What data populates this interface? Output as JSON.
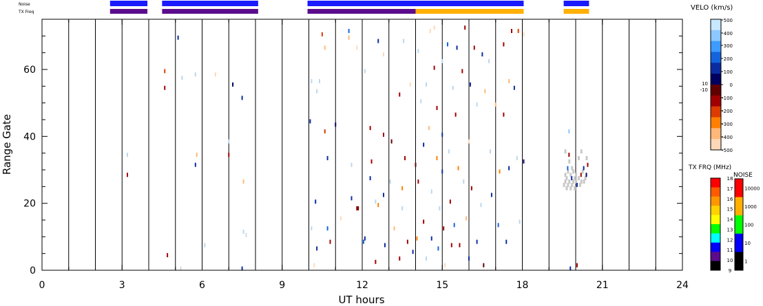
{
  "chart_data": {
    "type": "heatmap",
    "xlabel": "UT hours",
    "ylabel": "Range Gate",
    "xlim": [
      0,
      24
    ],
    "ylim": [
      0,
      75
    ],
    "x_ticks": [
      0,
      3,
      6,
      9,
      12,
      15,
      18,
      21,
      24
    ],
    "x_tick_labels": [
      "0",
      "3",
      "6",
      "9",
      "12",
      "15",
      "18",
      "21",
      "24"
    ],
    "y_ticks": [
      0,
      20,
      40,
      60
    ],
    "y_tick_labels": [
      "0",
      "20",
      "40",
      "60"
    ],
    "grid": "vertical lines every hour",
    "status_rows": {
      "noise_label": "Noise",
      "txfreq_label": "TX Freq",
      "noise_segments": [
        {
          "start": 2.55,
          "end": 3.95,
          "color": "#1a1aff"
        },
        {
          "start": 4.5,
          "end": 8.1,
          "color": "#1a1aff"
        },
        {
          "start": 9.95,
          "end": 18.05,
          "color": "#1a1aff"
        },
        {
          "start": 19.55,
          "end": 20.5,
          "color": "#1a1aff"
        }
      ],
      "txfreq_segments": [
        {
          "start": 2.55,
          "end": 3.95,
          "color": "#5b0c8c"
        },
        {
          "start": 4.5,
          "end": 8.1,
          "color": "#5b0c8c"
        },
        {
          "start": 9.95,
          "end": 14.0,
          "color": "#5b0c8c"
        },
        {
          "start": 14.0,
          "end": 18.05,
          "color": "#ffb000"
        },
        {
          "start": 19.55,
          "end": 20.5,
          "color": "#ffb000"
        }
      ]
    },
    "velo_colorbar": {
      "title": "VELO (km/s)",
      "tick_labels": [
        "500",
        "400",
        "300",
        "200",
        "100",
        "0",
        "-100",
        "-200",
        "-300",
        "-400",
        "-500"
      ],
      "side_labels": [
        "10",
        "-10"
      ],
      "colors": [
        "#c8e8ff",
        "#8cc8ff",
        "#3c9cff",
        "#1464dc",
        "#0a2ca0",
        "#000060",
        "#600000",
        "#a00000",
        "#dc3c00",
        "#ff8000",
        "#ffb878",
        "#ffd8b8"
      ]
    },
    "txfrq_colorbar": {
      "title": "TX FRQ (MHz)",
      "tick_labels": [
        "18",
        "17",
        "16",
        "15",
        "14",
        "13",
        "12",
        "11",
        "10",
        "9"
      ],
      "colors": [
        "#ff0000",
        "#ff5a00",
        "#ff9600",
        "#ffd200",
        "#ffff00",
        "#00ff00",
        "#00ffff",
        "#0000ff",
        "#5b0c8c",
        "#000000"
      ]
    },
    "noise_colorbar": {
      "title": "NOISE",
      "tick_labels": [
        "10000",
        "1000",
        "100",
        "10",
        "1"
      ],
      "colors": [
        "#ff0000",
        "#ffb000",
        "#00ff00",
        "#0000ff",
        "#000000"
      ]
    },
    "points": [
      {
        "x": 3.2,
        "y": 28.5,
        "c": "#a00000"
      },
      {
        "x": 3.2,
        "y": 34.5,
        "c": "#bbd7ee"
      },
      {
        "x": 4.6,
        "y": 54.5,
        "c": "#a00000"
      },
      {
        "x": 4.6,
        "y": 59.5,
        "c": "#dc3c00"
      },
      {
        "x": 4.7,
        "y": 4.5,
        "c": "#a00000"
      },
      {
        "x": 5.1,
        "y": 69.5,
        "c": "#0a2ca0"
      },
      {
        "x": 5.2,
        "y": 0.5,
        "c": "#d8d8d8"
      },
      {
        "x": 5.25,
        "y": 57.5,
        "c": "#bbd7ee"
      },
      {
        "x": 5.75,
        "y": 58.5,
        "c": "#bbd7ee"
      },
      {
        "x": 5.75,
        "y": 31.5,
        "c": "#0a2ca0"
      },
      {
        "x": 5.8,
        "y": 34.5,
        "c": "#ffb878"
      },
      {
        "x": 6.1,
        "y": 7.5,
        "c": "#bbd7ee"
      },
      {
        "x": 6.5,
        "y": 58.5,
        "c": "#ffd8b8"
      },
      {
        "x": 7.0,
        "y": 34.5,
        "c": "#a00000"
      },
      {
        "x": 7.0,
        "y": 38.5,
        "c": "#bbd7ee"
      },
      {
        "x": 7.15,
        "y": 55.5,
        "c": "#000060"
      },
      {
        "x": 7.5,
        "y": 51.5,
        "c": "#0a2ca0"
      },
      {
        "x": 7.5,
        "y": 0.5,
        "c": "#0a2ca0"
      },
      {
        "x": 7.55,
        "y": 26.5,
        "c": "#ffb878"
      },
      {
        "x": 7.55,
        "y": 11.5,
        "c": "#bbd7ee"
      },
      {
        "x": 7.65,
        "y": 10.5,
        "c": "#d8d8d8"
      },
      {
        "x": 10.05,
        "y": 44.5,
        "c": "#0a2ca0"
      },
      {
        "x": 10.1,
        "y": 56.5,
        "c": "#bbd7ee"
      },
      {
        "x": 10.1,
        "y": 12.5,
        "c": "#bbd7ee"
      },
      {
        "x": 10.2,
        "y": 1.5,
        "c": "#ffd8b8"
      },
      {
        "x": 10.25,
        "y": 20.5,
        "c": "#0a2ca0"
      },
      {
        "x": 10.3,
        "y": 53.5,
        "c": "#bbd7ee"
      },
      {
        "x": 10.3,
        "y": 6.5,
        "c": "#0a2ca0"
      },
      {
        "x": 10.4,
        "y": 56.5,
        "c": "#bbd7ee"
      },
      {
        "x": 10.5,
        "y": 70.5,
        "c": "#dc3c00"
      },
      {
        "x": 10.6,
        "y": 66.5,
        "c": "#ffb878"
      },
      {
        "x": 10.6,
        "y": 41.5,
        "c": "#dc3c00"
      },
      {
        "x": 10.7,
        "y": 33.5,
        "c": "#0a2ca0"
      },
      {
        "x": 10.7,
        "y": 12.5,
        "c": "#1464dc"
      },
      {
        "x": 10.8,
        "y": 8.5,
        "c": "#a00000"
      },
      {
        "x": 11.0,
        "y": 43.5,
        "c": "#000060"
      },
      {
        "x": 11.2,
        "y": 15.5,
        "c": "#ffd8b8"
      },
      {
        "x": 11.5,
        "y": 71.5,
        "c": "#1464dc"
      },
      {
        "x": 11.5,
        "y": 69.5,
        "c": "#ffb878"
      },
      {
        "x": 11.6,
        "y": 21.5,
        "c": "#0a2ca0"
      },
      {
        "x": 11.6,
        "y": 31.5,
        "c": "#bbd7ee"
      },
      {
        "x": 11.8,
        "y": 66.5,
        "c": "#ffd8b8"
      },
      {
        "x": 11.8,
        "y": 18.5,
        "c": "#a00000"
      },
      {
        "x": 11.85,
        "y": 18.5,
        "c": "#600000"
      },
      {
        "x": 12.05,
        "y": 8.5,
        "c": "#1464dc"
      },
      {
        "x": 12.1,
        "y": 59.5,
        "c": "#bbd7ee"
      },
      {
        "x": 12.1,
        "y": 9.5,
        "c": "#0a2ca0"
      },
      {
        "x": 12.3,
        "y": 42.5,
        "c": "#a00000"
      },
      {
        "x": 12.3,
        "y": 27.5,
        "c": "#0a2ca0"
      },
      {
        "x": 12.35,
        "y": 32.5,
        "c": "#a00000"
      },
      {
        "x": 12.5,
        "y": 2.5,
        "c": "#a00000"
      },
      {
        "x": 12.5,
        "y": 20.5,
        "c": "#bbd7ee"
      },
      {
        "x": 12.6,
        "y": 68.5,
        "c": "#0a2ca0"
      },
      {
        "x": 12.6,
        "y": 19.5,
        "c": "#ff8000"
      },
      {
        "x": 12.8,
        "y": 64.5,
        "c": "#ffd8b8"
      },
      {
        "x": 12.8,
        "y": 40.5,
        "c": "#a00000"
      },
      {
        "x": 12.8,
        "y": 22.5,
        "c": "#0a2ca0"
      },
      {
        "x": 12.85,
        "y": 7.5,
        "c": "#0a2ca0"
      },
      {
        "x": 13.05,
        "y": 26.5,
        "c": "#bbd7ee"
      },
      {
        "x": 13.1,
        "y": 38.5,
        "c": "#600000"
      },
      {
        "x": 13.2,
        "y": 12.5,
        "c": "#ffb878"
      },
      {
        "x": 13.4,
        "y": 52.5,
        "c": "#a00000"
      },
      {
        "x": 13.4,
        "y": 3.5,
        "c": "#a00000"
      },
      {
        "x": 13.5,
        "y": 18.5,
        "c": "#bbd7ee"
      },
      {
        "x": 13.5,
        "y": 24.5,
        "c": "#ff8000"
      },
      {
        "x": 13.55,
        "y": 68.5,
        "c": "#bbd7ee"
      },
      {
        "x": 13.6,
        "y": 33.5,
        "c": "#a00000"
      },
      {
        "x": 13.7,
        "y": 8.5,
        "c": "#a00000"
      },
      {
        "x": 13.8,
        "y": 55.5,
        "c": "#ffd8b8"
      },
      {
        "x": 13.9,
        "y": 5.5,
        "c": "#0a2ca0"
      },
      {
        "x": 14.0,
        "y": 31.5,
        "c": "#600000"
      },
      {
        "x": 14.05,
        "y": 9.5,
        "c": "#ff8000"
      },
      {
        "x": 14.1,
        "y": 65.5,
        "c": "#bbd7ee"
      },
      {
        "x": 14.1,
        "y": 26.5,
        "c": "#a00000"
      },
      {
        "x": 14.2,
        "y": 50.5,
        "c": "#bbd7ee"
      },
      {
        "x": 14.3,
        "y": 37.5,
        "c": "#0a2ca0"
      },
      {
        "x": 14.3,
        "y": 14.5,
        "c": "#a00000"
      },
      {
        "x": 14.4,
        "y": 3.5,
        "c": "#bbd7ee"
      },
      {
        "x": 14.4,
        "y": 55.5,
        "c": "#bbd7ee"
      },
      {
        "x": 14.5,
        "y": 42.5,
        "c": "#ffb878"
      },
      {
        "x": 14.55,
        "y": 71.5,
        "c": "#ffd8b8"
      },
      {
        "x": 14.6,
        "y": 9.5,
        "c": "#0a2ca0"
      },
      {
        "x": 14.6,
        "y": 23.5,
        "c": "#bbd7ee"
      },
      {
        "x": 14.7,
        "y": 60.5,
        "c": "#a00000"
      },
      {
        "x": 14.7,
        "y": 72.5,
        "c": "#ffd8b8"
      },
      {
        "x": 14.8,
        "y": 48.5,
        "c": "#a00000"
      },
      {
        "x": 14.8,
        "y": 33.5,
        "c": "#ff8000"
      },
      {
        "x": 14.85,
        "y": 6.5,
        "c": "#1464dc"
      },
      {
        "x": 14.9,
        "y": 18.5,
        "c": "#bbd7ee"
      },
      {
        "x": 15.0,
        "y": 62.5,
        "c": "#bbd7ee"
      },
      {
        "x": 15.0,
        "y": 40.5,
        "c": "#0a2ca0"
      },
      {
        "x": 15.0,
        "y": 29.5,
        "c": "#0a2ca0"
      },
      {
        "x": 15.05,
        "y": 12.5,
        "c": "#a00000"
      },
      {
        "x": 15.1,
        "y": 1.5,
        "c": "#ffd8b8"
      },
      {
        "x": 15.2,
        "y": 67.5,
        "c": "#1464dc"
      },
      {
        "x": 15.25,
        "y": 35.5,
        "c": "#bbd7ee"
      },
      {
        "x": 15.3,
        "y": 20.5,
        "c": "#a00000"
      },
      {
        "x": 15.35,
        "y": 7.5,
        "c": "#a00000"
      },
      {
        "x": 15.4,
        "y": 54.5,
        "c": "#bbd7ee"
      },
      {
        "x": 15.45,
        "y": 13.5,
        "c": "#1464dc"
      },
      {
        "x": 15.5,
        "y": 46.5,
        "c": "#a00000"
      },
      {
        "x": 15.55,
        "y": 66.5,
        "c": "#0a2ca0"
      },
      {
        "x": 15.6,
        "y": 30.5,
        "c": "#ff8000"
      },
      {
        "x": 15.65,
        "y": 7.5,
        "c": "#a00000"
      },
      {
        "x": 15.75,
        "y": 59.5,
        "c": "#a00000"
      },
      {
        "x": 15.8,
        "y": 26.5,
        "c": "#bbd7ee"
      },
      {
        "x": 15.85,
        "y": 72.5,
        "c": "#a00000"
      },
      {
        "x": 15.9,
        "y": 15.5,
        "c": "#ffb878"
      },
      {
        "x": 16.0,
        "y": 38.5,
        "c": "#ffd8b8"
      },
      {
        "x": 16.0,
        "y": 3.5,
        "c": "#0a2ca0"
      },
      {
        "x": 16.05,
        "y": 55.5,
        "c": "#0a2ca0"
      },
      {
        "x": 16.1,
        "y": 24.5,
        "c": "#a00000"
      },
      {
        "x": 16.2,
        "y": 66.5,
        "c": "#a00000"
      },
      {
        "x": 16.3,
        "y": 49.5,
        "c": "#bbd7ee"
      },
      {
        "x": 16.3,
        "y": 8.5,
        "c": "#0a2ca0"
      },
      {
        "x": 16.45,
        "y": 19.5,
        "c": "#bbd7ee"
      },
      {
        "x": 16.5,
        "y": 64.5,
        "c": "#0a2ca0"
      },
      {
        "x": 16.55,
        "y": 1.5,
        "c": "#600000"
      },
      {
        "x": 16.6,
        "y": 53.5,
        "c": "#ffb878"
      },
      {
        "x": 16.75,
        "y": 62.5,
        "c": "#bbd7ee"
      },
      {
        "x": 16.8,
        "y": 35.5,
        "c": "#bbd7ee"
      },
      {
        "x": 16.85,
        "y": 22.5,
        "c": "#0a2ca0"
      },
      {
        "x": 17.0,
        "y": 49.5,
        "c": "#ffb878"
      },
      {
        "x": 17.1,
        "y": 13.5,
        "c": "#1464dc"
      },
      {
        "x": 17.15,
        "y": 29.5,
        "c": "#ff8000"
      },
      {
        "x": 17.3,
        "y": 67.5,
        "c": "#a00000"
      },
      {
        "x": 17.3,
        "y": 46.5,
        "c": "#a00000"
      },
      {
        "x": 17.4,
        "y": 8.5,
        "c": "#0a2ca0"
      },
      {
        "x": 17.5,
        "y": 30.5,
        "c": "#0a2ca0"
      },
      {
        "x": 17.5,
        "y": 56.5,
        "c": "#ffb878"
      },
      {
        "x": 17.6,
        "y": 71.5,
        "c": "#a00000"
      },
      {
        "x": 17.7,
        "y": 54.5,
        "c": "#0a2ca0"
      },
      {
        "x": 17.8,
        "y": 33.5,
        "c": "#bbd7ee"
      },
      {
        "x": 17.85,
        "y": 71.5,
        "c": "#dc3c00"
      },
      {
        "x": 17.9,
        "y": 14.5,
        "c": "#bbd7ee"
      },
      {
        "x": 18.05,
        "y": 32.5,
        "c": "#000060"
      },
      {
        "x": 18.05,
        "y": 70.5,
        "c": "#ffd8b8"
      },
      {
        "x": 19.75,
        "y": 41.5,
        "c": "#8cc8ff"
      },
      {
        "x": 19.8,
        "y": 0.5,
        "c": "#0a2ca0"
      },
      {
        "x": 19.7,
        "y": 30.5,
        "c": "#1464dc"
      },
      {
        "x": 19.75,
        "y": 34.5,
        "c": "#a00000"
      },
      {
        "x": 19.85,
        "y": 27.5,
        "c": "#0a2ca0"
      },
      {
        "x": 20.05,
        "y": 25.5,
        "c": "#0a2ca0"
      },
      {
        "x": 20.2,
        "y": 28.5,
        "c": "#a00000"
      },
      {
        "x": 20.3,
        "y": 30.5,
        "c": "#0a2ca0"
      },
      {
        "x": 20.4,
        "y": 28.5,
        "c": "#000060"
      },
      {
        "x": 20.45,
        "y": 31.5,
        "c": "#a00000"
      },
      {
        "x": 20.05,
        "y": 1.5,
        "c": "#a00000"
      }
    ],
    "grey_cluster": [
      {
        "x": 19.55,
        "y": 25.5
      },
      {
        "x": 19.6,
        "y": 26.5
      },
      {
        "x": 19.6,
        "y": 28.5
      },
      {
        "x": 19.65,
        "y": 24.5
      },
      {
        "x": 19.65,
        "y": 27.5
      },
      {
        "x": 19.7,
        "y": 25.5
      },
      {
        "x": 19.7,
        "y": 29.5
      },
      {
        "x": 19.75,
        "y": 26.5
      },
      {
        "x": 19.75,
        "y": 32.5
      },
      {
        "x": 19.8,
        "y": 24.5
      },
      {
        "x": 19.8,
        "y": 28.5
      },
      {
        "x": 19.85,
        "y": 25.5
      },
      {
        "x": 19.85,
        "y": 30.5
      },
      {
        "x": 19.9,
        "y": 26.5
      },
      {
        "x": 19.9,
        "y": 29.5
      },
      {
        "x": 19.95,
        "y": 27.5
      },
      {
        "x": 19.95,
        "y": 24.5
      },
      {
        "x": 20.0,
        "y": 26.5
      },
      {
        "x": 20.0,
        "y": 28.5
      },
      {
        "x": 20.1,
        "y": 27.5
      },
      {
        "x": 20.1,
        "y": 33.5
      },
      {
        "x": 20.15,
        "y": 25.5
      },
      {
        "x": 20.2,
        "y": 26.5
      },
      {
        "x": 20.25,
        "y": 29.5
      },
      {
        "x": 20.3,
        "y": 26.5
      },
      {
        "x": 20.35,
        "y": 27.5
      },
      {
        "x": 20.4,
        "y": 33.5
      },
      {
        "x": 19.6,
        "y": 35.5
      },
      {
        "x": 20.2,
        "y": 35.5
      }
    ]
  }
}
